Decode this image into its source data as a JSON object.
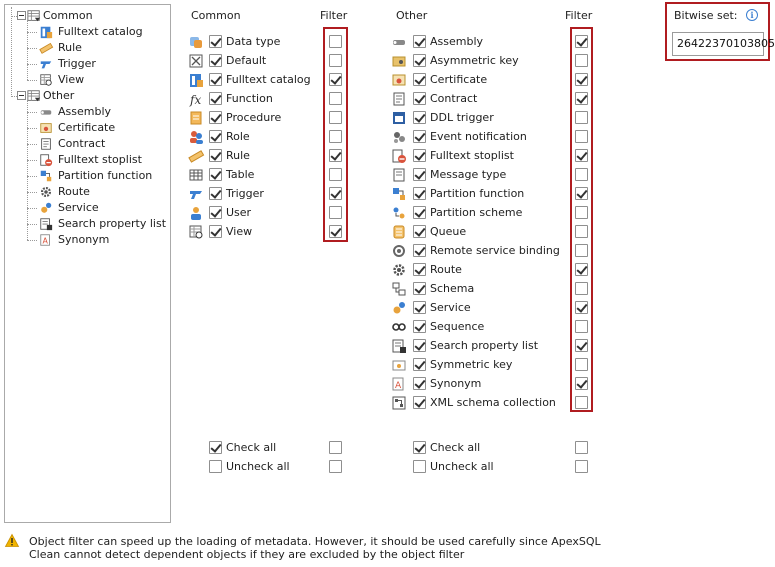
{
  "tree": {
    "common_label": "Common",
    "common_items": [
      "Fulltext catalog",
      "Rule",
      "Trigger",
      "View"
    ],
    "other_label": "Other",
    "other_items": [
      "Assembly",
      "Certificate",
      "Contract",
      "Fulltext stoplist",
      "Partition function",
      "Route",
      "Service",
      "Search property list",
      "Synonym"
    ]
  },
  "common": {
    "header": "Common",
    "filter_header": "Filter",
    "items": [
      {
        "label": "Data type",
        "icon": "data-type-icon",
        "checked": true,
        "filter": false
      },
      {
        "label": "Default",
        "icon": "default-icon",
        "checked": true,
        "filter": false
      },
      {
        "label": "Fulltext catalog",
        "icon": "fulltext-catalog-icon",
        "checked": true,
        "filter": true
      },
      {
        "label": "Function",
        "icon": "function-icon",
        "checked": true,
        "filter": false
      },
      {
        "label": "Procedure",
        "icon": "procedure-icon",
        "checked": true,
        "filter": false
      },
      {
        "label": "Role",
        "icon": "role-icon",
        "checked": true,
        "filter": false
      },
      {
        "label": "Rule",
        "icon": "rule-icon",
        "checked": true,
        "filter": true
      },
      {
        "label": "Table",
        "icon": "table-icon",
        "checked": true,
        "filter": false
      },
      {
        "label": "Trigger",
        "icon": "trigger-icon",
        "checked": true,
        "filter": true
      },
      {
        "label": "User",
        "icon": "user-icon",
        "checked": true,
        "filter": false
      },
      {
        "label": "View",
        "icon": "view-icon",
        "checked": true,
        "filter": true
      }
    ],
    "check_all": "Check all",
    "uncheck_all": "Uncheck all"
  },
  "other": {
    "header": "Other",
    "filter_header": "Filter",
    "items": [
      {
        "label": "Assembly",
        "icon": "assembly-icon",
        "checked": true,
        "filter": true
      },
      {
        "label": "Asymmetric key",
        "icon": "asymmetric-key-icon",
        "checked": true,
        "filter": false
      },
      {
        "label": "Certificate",
        "icon": "certificate-icon",
        "checked": true,
        "filter": true
      },
      {
        "label": "Contract",
        "icon": "contract-icon",
        "checked": true,
        "filter": true
      },
      {
        "label": "DDL trigger",
        "icon": "ddl-trigger-icon",
        "checked": true,
        "filter": false
      },
      {
        "label": "Event notification",
        "icon": "event-notification-icon",
        "checked": true,
        "filter": false
      },
      {
        "label": "Fulltext stoplist",
        "icon": "fulltext-stoplist-icon",
        "checked": true,
        "filter": true
      },
      {
        "label": "Message type",
        "icon": "message-type-icon",
        "checked": true,
        "filter": false
      },
      {
        "label": "Partition function",
        "icon": "partition-function-icon",
        "checked": true,
        "filter": true
      },
      {
        "label": "Partition scheme",
        "icon": "partition-scheme-icon",
        "checked": true,
        "filter": false
      },
      {
        "label": "Queue",
        "icon": "queue-icon",
        "checked": true,
        "filter": false
      },
      {
        "label": "Remote service binding",
        "icon": "remote-service-binding-icon",
        "checked": true,
        "filter": false
      },
      {
        "label": "Route",
        "icon": "route-icon",
        "checked": true,
        "filter": true
      },
      {
        "label": "Schema",
        "icon": "schema-icon",
        "checked": true,
        "filter": false
      },
      {
        "label": "Service",
        "icon": "service-icon",
        "checked": true,
        "filter": true
      },
      {
        "label": "Sequence",
        "icon": "sequence-icon",
        "checked": true,
        "filter": false
      },
      {
        "label": "Search property list",
        "icon": "search-property-list-icon",
        "checked": true,
        "filter": true
      },
      {
        "label": "Symmetric key",
        "icon": "symmetric-key-icon",
        "checked": true,
        "filter": false
      },
      {
        "label": "Synonym",
        "icon": "synonym-icon",
        "checked": true,
        "filter": true
      },
      {
        "label": "XML schema collection",
        "icon": "xml-schema-collection-icon",
        "checked": true,
        "filter": false
      }
    ],
    "check_all": "Check all",
    "uncheck_all": "Uncheck all"
  },
  "bitwise": {
    "label": "Bitwise set:",
    "value": "26422370103805"
  },
  "footer": {
    "text": "Object filter can speed up the loading of metadata. However, it should be used carefully since ApexSQL Clean cannot detect dependent objects if they are excluded by the object filter"
  },
  "colors": {
    "highlight_border": "#b01c20",
    "info_blue": "#3b7fd1",
    "warning_yellow": "#f0b400"
  }
}
